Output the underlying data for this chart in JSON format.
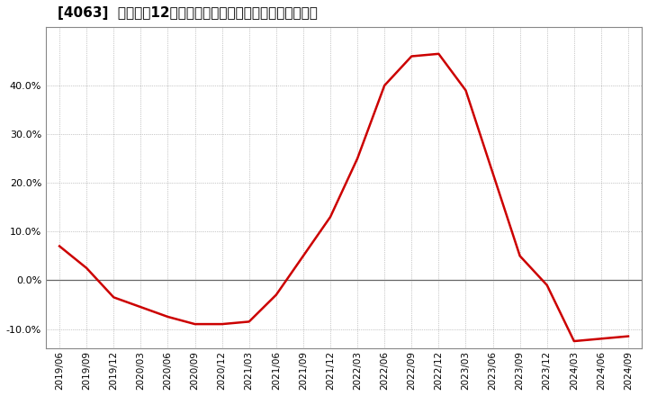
{
  "title": "[4063]  売上高の12か月移動合計の対前年同期増減率の推移",
  "line_color": "#cc0000",
  "background_color": "#ffffff",
  "plot_bg_color": "#ffffff",
  "grid_color": "#999999",
  "zero_line_color": "#666666",
  "x_labels": [
    "2019/06",
    "2019/09",
    "2019/12",
    "2020/03",
    "2020/06",
    "2020/09",
    "2020/12",
    "2021/03",
    "2021/06",
    "2021/09",
    "2021/12",
    "2022/03",
    "2022/06",
    "2022/09",
    "2022/12",
    "2023/03",
    "2023/06",
    "2023/09",
    "2023/12",
    "2024/03",
    "2024/06",
    "2024/09"
  ],
  "y_values": [
    7.0,
    2.5,
    -3.5,
    -5.5,
    -7.5,
    -9.0,
    -9.0,
    -8.5,
    -3.0,
    5.0,
    13.0,
    25.0,
    40.0,
    46.0,
    46.5,
    39.0,
    22.0,
    5.0,
    -1.0,
    -12.5,
    -12.0,
    -11.5
  ],
  "ylim": [
    -14,
    52
  ],
  "yticks": [
    -10.0,
    0.0,
    10.0,
    20.0,
    30.0,
    40.0
  ],
  "title_fontsize": 11,
  "tick_fontsize": 8,
  "line_width": 1.8
}
